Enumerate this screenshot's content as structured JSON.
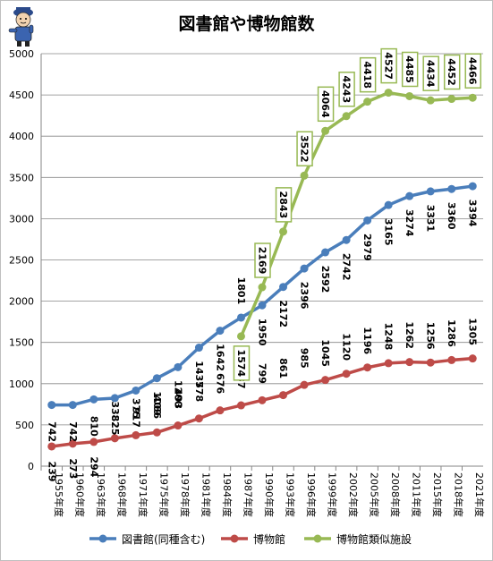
{
  "title": "図書館や博物館数",
  "legend_position": "bottom",
  "colors": {
    "library": "#4a7ebb",
    "museum": "#be4b48",
    "similar": "#98b954",
    "grid": "#868686",
    "label_box_border": "#98b954"
  },
  "mascot": "cartoon-character-logo",
  "chart_data": {
    "type": "line",
    "title": "図書館や博物館数",
    "categories": [
      "1955年度",
      "1960年度",
      "1963年度",
      "1968年度",
      "1971年度",
      "1975年度",
      "1978年度",
      "1981年度",
      "1984年度",
      "1987年度",
      "1990年度",
      "1993年度",
      "1996年度",
      "1999年度",
      "2002年度",
      "2005年度",
      "2008年度",
      "2011年度",
      "2015年度",
      "2018年度",
      "2021年度"
    ],
    "category_labels": [
      "1955年度",
      "1960年度",
      "1963年度",
      "1968年度",
      "1971年度",
      "1975年度",
      "1978年度",
      "1981年度",
      "1984年度",
      "1987年度",
      "1990年度",
      "1993年度",
      "1996年度",
      "1999年度",
      "2002年度",
      "2005年度",
      "2008年度",
      "2011年度",
      "2015年度",
      "2018年度",
      "2021年度"
    ],
    "ylim": [
      0,
      5000
    ],
    "yticks": [
      0,
      500,
      1000,
      1500,
      2000,
      2500,
      3000,
      3500,
      4000,
      4500,
      5000
    ],
    "grid": true,
    "legend": "bottom",
    "series": [
      {
        "name": "図書館(同種含む)",
        "color": "#4a7ebb",
        "values": [
          742,
          742,
          810,
          825,
          917,
          1066,
          1200,
          1437,
          1642,
          1801,
          1950,
          2172,
          2396,
          2592,
          2742,
          2979,
          3165,
          3274,
          3331,
          3360,
          3394
        ]
      },
      {
        "name": "博物館",
        "color": "#be4b48",
        "values": [
          239,
          273,
          294,
          338,
          375,
          409,
          493,
          578,
          676,
          737,
          799,
          861,
          985,
          1045,
          1120,
          1196,
          1248,
          1262,
          1256,
          1286,
          1305
        ]
      },
      {
        "name": "博物館類似施設",
        "color": "#98b954",
        "values": [
          null,
          null,
          null,
          null,
          null,
          null,
          null,
          null,
          null,
          1574,
          2169,
          2843,
          3522,
          4064,
          4243,
          4418,
          4527,
          4485,
          4434,
          4452,
          4466
        ]
      }
    ]
  }
}
